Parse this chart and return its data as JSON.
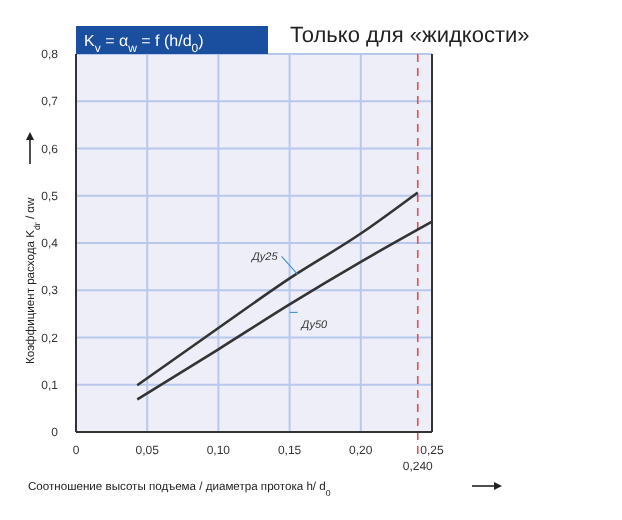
{
  "chart_data": {
    "type": "line",
    "title": "K$_{v}$ = α$_{w}$ = f (h/d$_{0}$)",
    "subtitle": "Только для «жидкости»",
    "xlabel": "Соотношение высоты подъема / диаметра протока  h/ d$_{0}$",
    "ylabel": "Коэффициент расхода  K$_{dr}$ / αw",
    "xlim": [
      0,
      0.25
    ],
    "ylim": [
      0,
      0.8
    ],
    "xticks": [
      {
        "value": 0,
        "label": "0"
      },
      {
        "value": 0.05,
        "label": "0,05"
      },
      {
        "value": 0.1,
        "label": "0,10"
      },
      {
        "value": 0.15,
        "label": "0,15"
      },
      {
        "value": 0.2,
        "label": "0,20"
      },
      {
        "value": 0.25,
        "label": "0,25"
      }
    ],
    "yticks": [
      {
        "value": 0,
        "label": "0"
      },
      {
        "value": 0.1,
        "label": "0,1"
      },
      {
        "value": 0.2,
        "label": "0,2"
      },
      {
        "value": 0.3,
        "label": "0,3"
      },
      {
        "value": 0.4,
        "label": "0,4"
      },
      {
        "value": 0.5,
        "label": "0,5"
      },
      {
        "value": 0.6,
        "label": "0,6"
      },
      {
        "value": 0.7,
        "label": "0,7"
      },
      {
        "value": 0.8,
        "label": "0,8"
      }
    ],
    "grid": true,
    "line_style": "solid",
    "ref_lines": [
      {
        "axis": "x",
        "value": 0.24,
        "label": "0,240",
        "color": "#e05050",
        "line_style": "dashed"
      }
    ],
    "series": [
      {
        "name": "Ду25",
        "color": "#333333",
        "x": [
          0.043,
          0.1,
          0.15,
          0.2,
          0.24
        ],
        "values": [
          0.099,
          0.22,
          0.325,
          0.42,
          0.507
        ]
      },
      {
        "name": "Ду50",
        "color": "#333333",
        "x": [
          0.043,
          0.1,
          0.15,
          0.2,
          0.25
        ],
        "values": [
          0.069,
          0.175,
          0.27,
          0.36,
          0.445
        ]
      }
    ]
  }
}
